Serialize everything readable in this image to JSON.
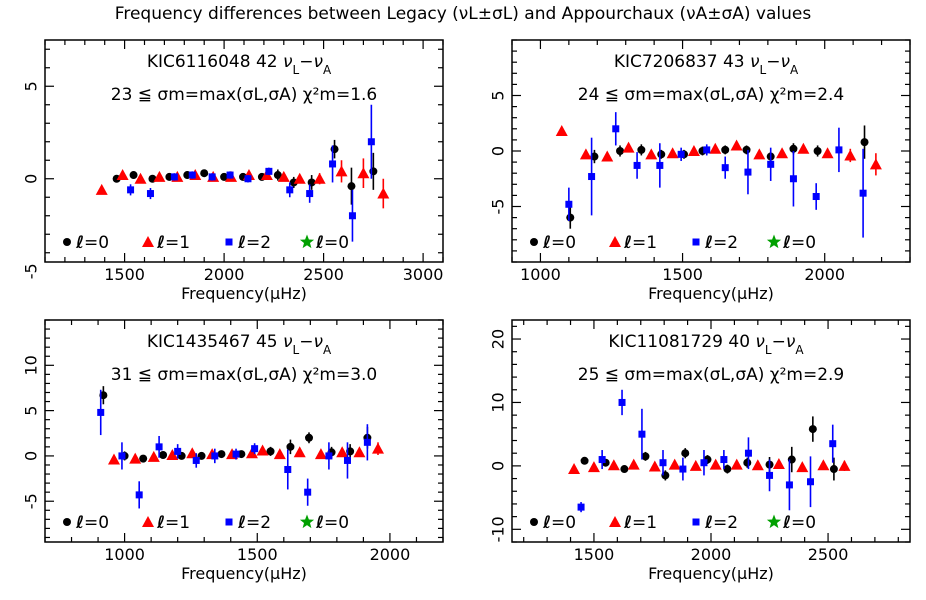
{
  "figure": {
    "title": "Frequency differences between Legacy (νL±σL) and Appourchaux (νA±σA) values"
  },
  "colors": {
    "l0": "#000000",
    "l1": "#ff0000",
    "l2": "#0000ff",
    "l3": "#00a000"
  },
  "chart_data": [
    {
      "type": "scatter",
      "star": "KIC6116048",
      "n_modes": "42",
      "diff_label": "νL−νA",
      "stats_line": "23 ≦ σm=max(σL,σA)  χ²m=1.6",
      "xlabel": "Frequency(μHz)",
      "ylabel": "",
      "xlim": [
        1100,
        3100
      ],
      "ylim": [
        -4.5,
        7.5
      ],
      "xticks": [
        1500,
        2000,
        2500,
        3000
      ],
      "yticks": [
        -5,
        0,
        5
      ],
      "legend": [
        "ℓ=0",
        "ℓ=1",
        "ℓ=2",
        "ℓ=0"
      ],
      "legend_position": "bottom-left",
      "series": [
        {
          "name": "ℓ=0",
          "marker": "circle",
          "color": "black",
          "x": [
            1460,
            1545,
            1640,
            1725,
            1815,
            1900,
            2000,
            2095,
            2190,
            2270,
            2350,
            2440,
            2555,
            2640,
            2750
          ],
          "y": [
            0.0,
            0.2,
            0.0,
            0.1,
            0.2,
            0.3,
            0.1,
            0.1,
            0.1,
            0.2,
            -0.2,
            -0.2,
            1.6,
            -0.4,
            0.4
          ],
          "err": [
            0.2,
            0.2,
            0.2,
            0.2,
            0.2,
            0.2,
            0.2,
            0.2,
            0.2,
            0.3,
            0.3,
            0.4,
            0.5,
            1.0,
            1.0
          ]
        },
        {
          "name": "ℓ=1",
          "marker": "triangle",
          "color": "red",
          "x": [
            1385,
            1490,
            1580,
            1675,
            1765,
            1855,
            1945,
            2035,
            2125,
            2215,
            2300,
            2380,
            2480,
            2590,
            2700,
            2800
          ],
          "y": [
            -0.6,
            0.2,
            0.0,
            0.1,
            0.1,
            0.2,
            0.1,
            0.1,
            0.2,
            0.2,
            0.1,
            0.0,
            0.0,
            0.4,
            0.3,
            -0.8
          ],
          "err": [
            0.2,
            0.2,
            0.2,
            0.2,
            0.2,
            0.2,
            0.2,
            0.2,
            0.2,
            0.2,
            0.2,
            0.2,
            0.3,
            0.6,
            0.8,
            0.8
          ]
        },
        {
          "name": "ℓ=2",
          "marker": "square",
          "color": "blue",
          "x": [
            1530,
            1630,
            1750,
            1840,
            1940,
            2030,
            2120,
            2225,
            2330,
            2430,
            2545,
            2645,
            2740
          ],
          "y": [
            -0.6,
            -0.8,
            0.1,
            0.2,
            0.1,
            0.2,
            0.0,
            0.4,
            -0.6,
            -0.8,
            0.8,
            -2.0,
            2.0
          ],
          "err": [
            0.3,
            0.3,
            0.2,
            0.2,
            0.2,
            0.2,
            0.2,
            0.2,
            0.4,
            0.5,
            1.0,
            1.4,
            2.0
          ]
        },
        {
          "name": "ℓ=0",
          "marker": "star",
          "color": "green",
          "x": [],
          "y": [],
          "err": []
        }
      ]
    },
    {
      "type": "scatter",
      "star": "KIC7206837",
      "n_modes": "43",
      "diff_label": "νL−νA",
      "stats_line": "24 ≦ σm=max(σL,σA)  χ²m=2.4",
      "xlabel": "Frequency(μHz)",
      "ylabel": "",
      "xlim": [
        900,
        2300
      ],
      "ylim": [
        -10,
        10
      ],
      "xticks": [
        1000,
        1500,
        2000
      ],
      "yticks": [
        -5,
        0,
        5
      ],
      "legend": [
        "ℓ=0",
        "ℓ=1",
        "ℓ=2",
        "ℓ=0"
      ],
      "legend_position": "bottom-left",
      "series": [
        {
          "name": "ℓ=0",
          "marker": "circle",
          "color": "black",
          "x": [
            1105,
            1190,
            1280,
            1355,
            1425,
            1505,
            1570,
            1650,
            1725,
            1810,
            1890,
            1975,
            2140
          ],
          "y": [
            -6.0,
            -0.5,
            0.0,
            0.1,
            -0.3,
            -0.3,
            0.0,
            0.1,
            0.1,
            -0.5,
            0.2,
            0.0,
            0.8
          ],
          "err": [
            1.0,
            0.6,
            0.5,
            0.5,
            0.4,
            0.4,
            0.4,
            0.4,
            0.4,
            0.4,
            0.5,
            0.5,
            1.5
          ]
        },
        {
          "name": "ℓ=1",
          "marker": "triangle",
          "color": "red",
          "x": [
            1075,
            1160,
            1235,
            1310,
            1390,
            1465,
            1540,
            1615,
            1690,
            1770,
            1850,
            1925,
            2010,
            2090,
            2180
          ],
          "y": [
            1.8,
            -0.3,
            -0.5,
            0.3,
            -0.3,
            -0.2,
            0.0,
            0.2,
            0.5,
            -0.3,
            -0.2,
            0.2,
            -0.2,
            -0.4,
            -1.2
          ],
          "err": [
            0.3,
            0.4,
            0.4,
            0.3,
            0.3,
            0.3,
            0.3,
            0.3,
            0.3,
            0.3,
            0.3,
            0.3,
            0.4,
            0.6,
            1.0
          ]
        },
        {
          "name": "ℓ=2",
          "marker": "square",
          "color": "blue",
          "x": [
            1100,
            1180,
            1265,
            1340,
            1420,
            1495,
            1585,
            1650,
            1730,
            1810,
            1890,
            1970,
            2050,
            2135
          ],
          "y": [
            -4.8,
            -2.3,
            2.0,
            -1.3,
            -1.3,
            -0.3,
            0.1,
            -1.5,
            -1.9,
            -1.2,
            -2.5,
            -4.1,
            0.1,
            -3.8
          ],
          "err": [
            1.5,
            3.5,
            1.5,
            1.2,
            2.0,
            0.6,
            0.5,
            1.0,
            2.0,
            1.5,
            2.5,
            1.2,
            2.0,
            4.0
          ]
        },
        {
          "name": "ℓ=0",
          "marker": "star",
          "color": "green",
          "x": [],
          "y": [],
          "err": []
        }
      ]
    },
    {
      "type": "scatter",
      "star": "KIC1435467",
      "n_modes": "45",
      "diff_label": "νL−νA",
      "stats_line": "31 ≦ σm=max(σL,σA)  χ²m=3.0",
      "xlabel": "Frequency(μHz)",
      "ylabel": "",
      "xlim": [
        700,
        2200
      ],
      "ylim": [
        -9.5,
        15
      ],
      "xticks": [
        1000,
        1500,
        2000
      ],
      "yticks": [
        -5,
        0,
        5,
        10
      ],
      "legend": [
        "ℓ=0",
        "ℓ=1",
        "ℓ=2",
        "ℓ=0"
      ],
      "legend_position": "bottom-left",
      "series": [
        {
          "name": "ℓ=0",
          "marker": "circle",
          "color": "black",
          "x": [
            920,
            1000,
            1070,
            1145,
            1215,
            1290,
            1365,
            1440,
            1550,
            1625,
            1695,
            1780,
            1850,
            1915
          ],
          "y": [
            6.7,
            0.0,
            -0.3,
            0.1,
            0.0,
            0.0,
            0.2,
            0.2,
            0.5,
            1.0,
            2.0,
            0.4,
            0.5,
            2.0
          ],
          "err": [
            1.0,
            0.5,
            0.4,
            0.4,
            0.4,
            0.4,
            0.4,
            0.4,
            0.5,
            0.8,
            0.6,
            0.6,
            0.8,
            1.2
          ]
        },
        {
          "name": "ℓ=1",
          "marker": "triangle",
          "color": "red",
          "x": [
            960,
            1040,
            1110,
            1180,
            1255,
            1330,
            1405,
            1480,
            1520,
            1585,
            1660,
            1740,
            1820,
            1885,
            1955
          ],
          "y": [
            -0.4,
            -0.3,
            -0.1,
            0.1,
            0.3,
            0.2,
            0.2,
            0.3,
            0.6,
            0.2,
            0.4,
            0.2,
            0.4,
            0.4,
            0.8
          ],
          "err": [
            0.3,
            0.3,
            0.3,
            0.3,
            0.3,
            0.3,
            0.3,
            0.3,
            0.4,
            0.3,
            0.4,
            0.4,
            0.5,
            0.5,
            0.7
          ]
        },
        {
          "name": "ℓ=2",
          "marker": "square",
          "color": "blue",
          "x": [
            910,
            990,
            1055,
            1130,
            1200,
            1270,
            1340,
            1420,
            1490,
            1615,
            1690,
            1770,
            1840,
            1915
          ],
          "y": [
            4.8,
            0.0,
            -4.3,
            1.0,
            0.5,
            -0.5,
            0.0,
            0.2,
            0.8,
            -1.5,
            -4.0,
            0.0,
            -0.5,
            1.5
          ],
          "err": [
            2.5,
            1.5,
            1.5,
            1.2,
            0.8,
            0.8,
            0.8,
            0.6,
            0.6,
            2.2,
            1.5,
            1.5,
            2.0,
            2.0
          ]
        },
        {
          "name": "ℓ=0",
          "marker": "star",
          "color": "green",
          "x": [],
          "y": [],
          "err": []
        }
      ]
    },
    {
      "type": "scatter",
      "star": "KIC11081729",
      "n_modes": "40",
      "diff_label": "νL−νA",
      "stats_line": "25 ≦ σm=max(σL,σA)  χ²m=2.9",
      "xlabel": "Frequency(μHz)",
      "ylabel": "",
      "xlim": [
        1150,
        2850
      ],
      "ylim": [
        -12,
        23
      ],
      "xticks": [
        1500,
        2000,
        2500
      ],
      "yticks": [
        -10,
        0,
        10,
        20
      ],
      "legend": [
        "ℓ=0",
        "ℓ=1",
        "ℓ=2",
        "ℓ=0"
      ],
      "legend_position": "bottom-left",
      "series": [
        {
          "name": "ℓ=0",
          "marker": "circle",
          "color": "black",
          "x": [
            1460,
            1550,
            1630,
            1720,
            1805,
            1890,
            1985,
            2070,
            2155,
            2250,
            2345,
            2435,
            2525
          ],
          "y": [
            0.8,
            0.5,
            -0.5,
            1.5,
            -1.5,
            2.0,
            1.0,
            -0.5,
            0.5,
            0.2,
            1.0,
            5.8,
            -0.5
          ],
          "err": [
            0.5,
            0.5,
            0.5,
            0.7,
            0.8,
            0.8,
            0.7,
            0.7,
            0.8,
            1.2,
            2.0,
            2.0,
            1.8
          ]
        },
        {
          "name": "ℓ=1",
          "marker": "triangle",
          "color": "red",
          "x": [
            1415,
            1500,
            1585,
            1670,
            1760,
            1845,
            1935,
            2020,
            2110,
            2200,
            2290,
            2390,
            2480,
            2570
          ],
          "y": [
            -0.5,
            -0.2,
            0.1,
            0.2,
            -0.1,
            0.2,
            0.0,
            0.2,
            0.2,
            0.1,
            0.3,
            -0.2,
            0.1,
            0.0
          ],
          "err": [
            0.4,
            0.4,
            0.4,
            0.4,
            0.4,
            0.4,
            0.4,
            0.4,
            0.4,
            0.4,
            0.4,
            0.5,
            0.6,
            0.8
          ]
        },
        {
          "name": "ℓ=2",
          "marker": "square",
          "color": "blue",
          "x": [
            1445,
            1535,
            1620,
            1705,
            1795,
            1880,
            1970,
            2055,
            2160,
            2250,
            2335,
            2425,
            2520
          ],
          "y": [
            -6.5,
            1.0,
            10.0,
            5.0,
            0.5,
            -0.5,
            0.5,
            1.0,
            2.0,
            -1.5,
            -3.0,
            -2.5,
            3.5
          ],
          "err": [
            0.8,
            1.5,
            2.0,
            4.0,
            2.0,
            1.8,
            2.0,
            1.5,
            2.5,
            2.5,
            4.0,
            4.0,
            3.0
          ]
        },
        {
          "name": "ℓ=0",
          "marker": "star",
          "color": "green",
          "x": [],
          "y": [],
          "err": []
        }
      ]
    }
  ]
}
